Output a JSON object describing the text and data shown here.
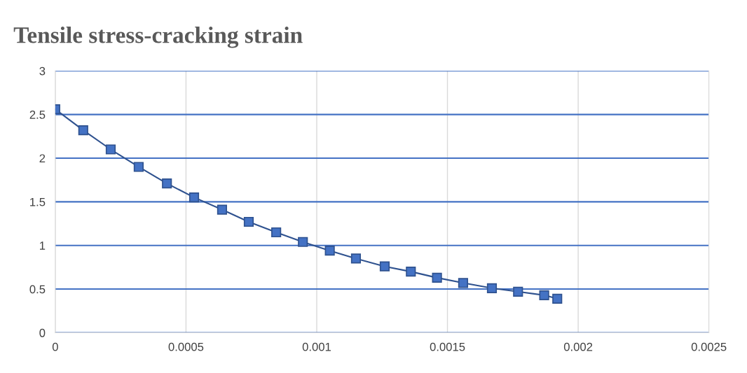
{
  "chart_data": {
    "type": "line",
    "title": "Tensile stress-cracking strain",
    "x": [
      0,
      0.000107,
      0.000212,
      0.000319,
      0.000427,
      0.000531,
      0.000638,
      0.00074,
      0.000845,
      0.000947,
      0.00105,
      0.00115,
      0.00126,
      0.00136,
      0.00146,
      0.00156,
      0.00167,
      0.00177,
      0.00187,
      0.00192
    ],
    "series": [
      {
        "color": "#4472c4",
        "values": [
          2.56,
          2.32,
          2.1,
          1.9,
          1.71,
          1.55,
          1.41,
          1.27,
          1.15,
          1.04,
          0.94,
          0.85,
          0.76,
          0.7,
          0.63,
          0.57,
          0.51,
          0.47,
          0.43,
          0.39
        ]
      }
    ],
    "xlim": [
      0,
      0.0025
    ],
    "xticks": [
      0,
      0.0005,
      0.001,
      0.0015,
      0.002,
      0.0025
    ],
    "ylim": [
      0,
      3
    ],
    "yticks": [
      0,
      0.5,
      1,
      1.5,
      2,
      2.5,
      3
    ],
    "grid": true,
    "marker": "square",
    "line_style": "solid"
  }
}
